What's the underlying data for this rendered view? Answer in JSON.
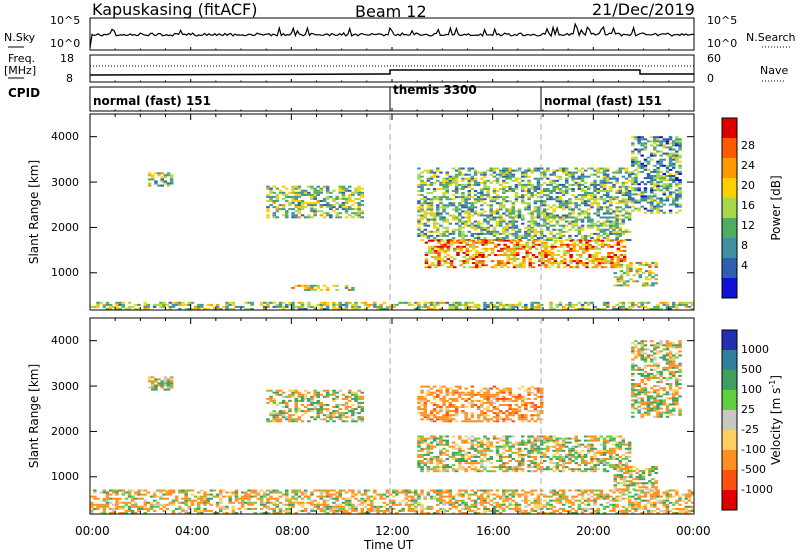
{
  "header": {
    "radar": "Kapuskasing (fitACF)",
    "beam": "Beam 12",
    "date": "21/Dec/2019"
  },
  "top_panels": {
    "nsky_label": "N.Sky",
    "nsky_ticks": [
      "10^5",
      "10^0"
    ],
    "nsearch_label": "N.Search",
    "nsearch_ticks": [
      "10^5",
      "10^0"
    ],
    "freq_label_1": "Freq.",
    "freq_label_2": "[MHz]",
    "freq_ticks": [
      "18",
      "8"
    ],
    "nave_label": "Nave",
    "nave_ticks": [
      "60",
      "0"
    ],
    "cpid_label": "CPID",
    "cpid_segments": [
      {
        "label": "normal (fast) 151",
        "start": 0,
        "end": 12
      },
      {
        "label": "themis 3300",
        "start": 12,
        "end": 18
      },
      {
        "label": "normal (fast) 151",
        "start": 18,
        "end": 24
      }
    ]
  },
  "panel_power": {
    "ylabel": "Slant Range [km]",
    "yticks": [
      "4000",
      "3000",
      "2000",
      "1000"
    ],
    "colorbar_label": "Power [dB]",
    "colorbar_ticks": [
      "28",
      "24",
      "20",
      "16",
      "12",
      "8",
      "4"
    ],
    "colorbar_colors": [
      "#e00000",
      "#ff5a00",
      "#ff9900",
      "#ffd000",
      "#a8d84a",
      "#4fae5e",
      "#3f8fa0",
      "#2f5faf",
      "#1010d0"
    ]
  },
  "panel_velocity": {
    "ylabel": "Slant Range [km]",
    "yticks": [
      "4000",
      "3000",
      "2000",
      "1000"
    ],
    "colorbar_label": "Velocity [m s",
    "colorbar_label_sup": "-1",
    "colorbar_label_end": "]",
    "colorbar_ticks": [
      "1000",
      "500",
      "100",
      "25",
      "-25",
      "-100",
      "-500",
      "-1000"
    ],
    "colorbar_colors": [
      "#2030b0",
      "#2f7f9a",
      "#3f9f5f",
      "#5fcf3f",
      "#c8c8c0",
      "#ffd060",
      "#ff9020",
      "#ff5010",
      "#e00000"
    ]
  },
  "xaxis": {
    "label": "Time UT",
    "ticks": [
      "00:00",
      "04:00",
      "08:00",
      "12:00",
      "16:00",
      "20:00",
      "00:00"
    ]
  },
  "chart_data": [
    {
      "type": "heatmap",
      "title": "Power",
      "xlabel": "Time UT",
      "ylabel": "Slant Range [km]",
      "xlim": [
        0,
        24
      ],
      "ylim": [
        180,
        4500
      ],
      "zlabel": "Power [dB]",
      "zlim": [
        0,
        30
      ],
      "regions": [
        {
          "t": [
            0.0,
            23.9
          ],
          "r": [
            180,
            320
          ],
          "z": 14
        },
        {
          "t": [
            2.3,
            3.3
          ],
          "r": [
            2900,
            3200
          ],
          "z": 14
        },
        {
          "t": [
            7.0,
            10.8
          ],
          "r": [
            2200,
            2900
          ],
          "z": 13
        },
        {
          "t": [
            8.0,
            10.5
          ],
          "r": [
            600,
            720
          ],
          "z": 16
        },
        {
          "t": [
            13.0,
            21.5
          ],
          "r": [
            1700,
            3300
          ],
          "z": 12
        },
        {
          "t": [
            13.3,
            21.3
          ],
          "r": [
            1100,
            1700
          ],
          "z": 22
        },
        {
          "t": [
            20.8,
            22.5
          ],
          "r": [
            700,
            1200
          ],
          "z": 16
        },
        {
          "t": [
            21.5,
            23.5
          ],
          "r": [
            2300,
            4000
          ],
          "z": 10
        }
      ]
    },
    {
      "type": "heatmap",
      "title": "Velocity",
      "xlabel": "Time UT",
      "ylabel": "Slant Range [km]",
      "xlim": [
        0,
        24
      ],
      "ylim": [
        180,
        4500
      ],
      "zlabel": "Velocity [m s-1]",
      "zlim": [
        -1000,
        1000
      ],
      "regions": [
        {
          "t": [
            0.0,
            23.9
          ],
          "r": [
            180,
            700
          ],
          "z": -100
        },
        {
          "t": [
            2.3,
            3.3
          ],
          "r": [
            2900,
            3200
          ],
          "z": 0
        },
        {
          "t": [
            7.0,
            10.8
          ],
          "r": [
            2200,
            2900
          ],
          "z": 0
        },
        {
          "t": [
            13.0,
            18.0
          ],
          "r": [
            2200,
            3000
          ],
          "z": -300
        },
        {
          "t": [
            13.0,
            21.5
          ],
          "r": [
            1100,
            1900
          ],
          "z": 0
        },
        {
          "t": [
            20.8,
            22.5
          ],
          "r": [
            700,
            1200
          ],
          "z": 0
        },
        {
          "t": [
            21.5,
            23.5
          ],
          "r": [
            2300,
            4000
          ],
          "z": 0
        }
      ]
    }
  ]
}
